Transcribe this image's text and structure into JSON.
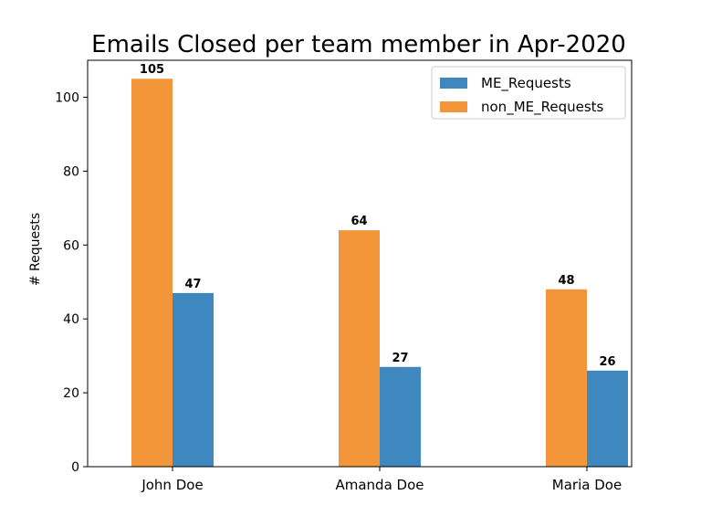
{
  "chart_data": {
    "type": "bar",
    "title": "Emails Closed per team member in Apr-2020",
    "xlabel": "",
    "ylabel": "# Requests",
    "categories": [
      "John Doe",
      "Amanda Doe",
      "Maria Doe"
    ],
    "ylim": [
      0,
      110
    ],
    "yticks": [
      0,
      20,
      40,
      60,
      80,
      100
    ],
    "series": [
      {
        "name": "non_ME_Requests",
        "values": [
          105,
          64,
          48
        ],
        "color": "#f39639"
      },
      {
        "name": "ME_Requests",
        "values": [
          47,
          27,
          26
        ],
        "color": "#3f88bf"
      }
    ],
    "legend": {
      "placement": "top-right",
      "entries": [
        {
          "label": "ME_Requests",
          "color": "#3f88bf"
        },
        {
          "label": "non_ME_Requests",
          "color": "#f39639"
        }
      ]
    },
    "grid": false
  }
}
